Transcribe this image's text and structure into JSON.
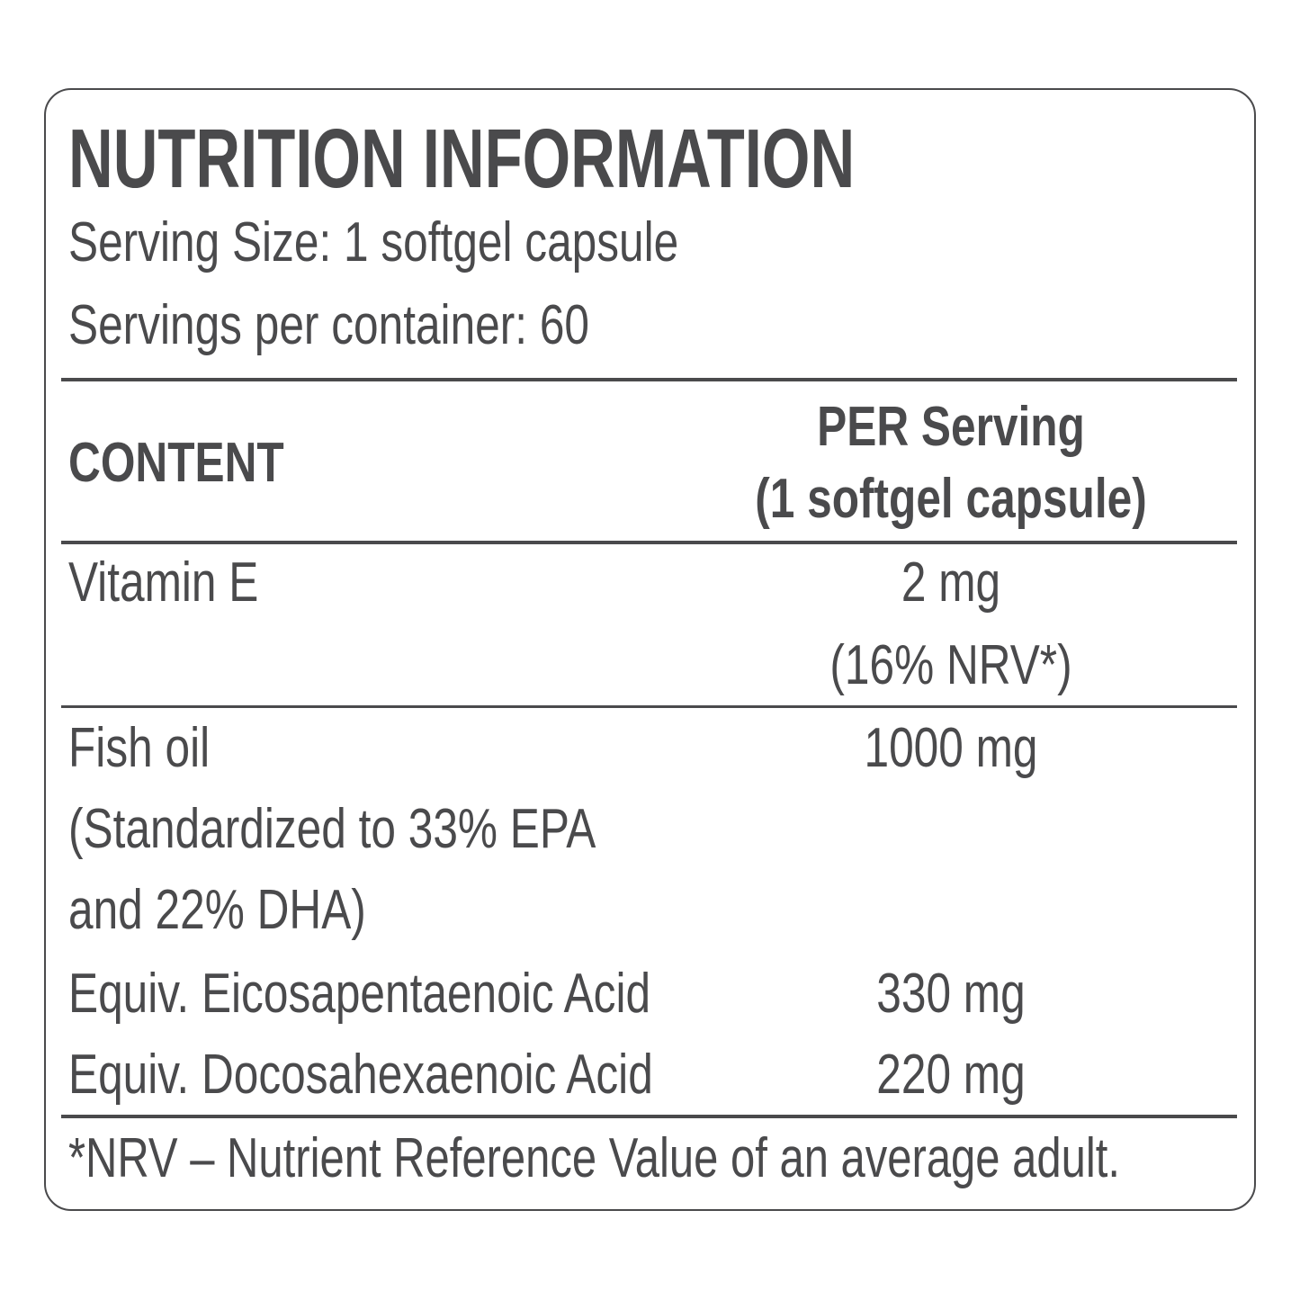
{
  "title": "NUTRITION INFORMATION",
  "serving_size": "Serving Size: 1 softgel capsule",
  "servings_per_container": "Servings per container: 60",
  "table": {
    "headers": {
      "content": "CONTENT",
      "per_serving_line1": "PER Serving",
      "per_serving_line2": "(1 softgel capsule)"
    },
    "rows": [
      {
        "name": [
          "Vitamin E"
        ],
        "value": [
          "2 mg",
          "(16% NRV*)"
        ]
      },
      {
        "name": [
          "Fish oil",
          "(Standardized to 33% EPA",
          "and 22% DHA)"
        ],
        "value": [
          "1000 mg"
        ]
      },
      {
        "name": [
          "Equiv. Eicosapentaenoic Acid"
        ],
        "value": [
          "330 mg"
        ]
      },
      {
        "name": [
          "Equiv. Docosahexaenoic Acid"
        ],
        "value": [
          "220 mg"
        ]
      }
    ]
  },
  "footnote": "*NRV – Nutrient Reference Value of an average adult.",
  "colors": {
    "text": "#4a4a4c",
    "background": "#ffffff"
  }
}
